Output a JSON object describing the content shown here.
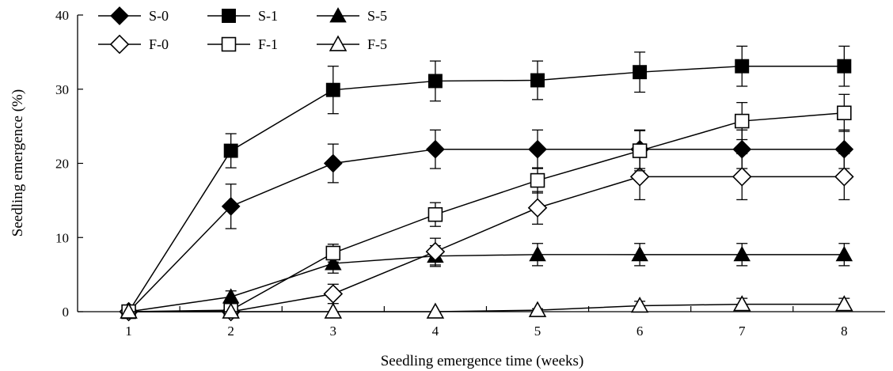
{
  "chart_data": {
    "type": "line",
    "title": "",
    "xlabel": "Seedling emergence  time (weeks)",
    "ylabel": "Seedling emergence (%)",
    "x": [
      1,
      2,
      3,
      4,
      5,
      6,
      7,
      8
    ],
    "xlim": [
      0.5,
      8.4
    ],
    "ylim": [
      0,
      40
    ],
    "yticks": [
      0,
      10,
      20,
      30,
      40
    ],
    "grid": false,
    "legend_position": "top-left",
    "series": [
      {
        "name": "S-0",
        "marker": "diamond",
        "filled": true,
        "values": [
          0,
          14.2,
          20.0,
          21.9,
          21.9,
          21.9,
          21.9,
          21.9
        ],
        "errors": [
          0,
          3.0,
          2.6,
          2.6,
          2.6,
          2.6,
          2.6,
          2.6
        ]
      },
      {
        "name": "S-1",
        "marker": "square",
        "filled": true,
        "values": [
          0,
          21.7,
          29.9,
          31.1,
          31.2,
          32.3,
          33.1,
          33.1
        ],
        "errors": [
          0,
          2.3,
          3.2,
          2.7,
          2.6,
          2.7,
          2.7,
          2.7
        ]
      },
      {
        "name": "S-5",
        "marker": "triangle",
        "filled": true,
        "values": [
          0,
          2.0,
          6.5,
          7.5,
          7.7,
          7.7,
          7.7,
          7.7
        ],
        "errors": [
          0,
          0.8,
          1.3,
          1.4,
          1.5,
          1.5,
          1.5,
          1.5
        ]
      },
      {
        "name": "F-0",
        "marker": "diamond",
        "filled": false,
        "values": [
          0,
          0,
          2.4,
          8.1,
          14.0,
          18.2,
          18.2,
          18.2
        ],
        "errors": [
          0,
          0,
          1.3,
          1.8,
          2.2,
          3.1,
          3.1,
          3.1
        ]
      },
      {
        "name": "F-1",
        "marker": "square",
        "filled": false,
        "values": [
          0,
          0.2,
          7.9,
          13.1,
          17.7,
          21.7,
          25.7,
          26.8
        ],
        "errors": [
          0,
          0,
          1.2,
          1.6,
          1.7,
          2.7,
          2.5,
          2.5
        ]
      },
      {
        "name": "F-5",
        "marker": "triangle",
        "filled": false,
        "values": [
          0,
          0,
          0,
          0,
          0.2,
          0.8,
          1.0,
          1.0
        ],
        "errors": [
          0,
          0,
          0,
          0,
          0.2,
          0.6,
          0.8,
          0.8
        ]
      }
    ]
  }
}
